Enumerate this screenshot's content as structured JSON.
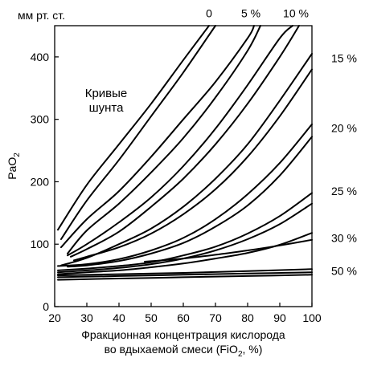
{
  "chart_data": {
    "type": "line",
    "units_label": "мм рт. ст.",
    "ylabel": "PaO",
    "ylabel_sub": "2",
    "xlabel_line1": "Фракционная концентрация кислорода",
    "xlabel_line2_pre": "во вдыхаемой смеси (FiO",
    "xlabel_line2_sub": "2",
    "xlabel_line2_post": ", %)",
    "annotation_line1": "Кривые",
    "annotation_line2": "шунта",
    "xlim": [
      20,
      100
    ],
    "ylim": [
      0,
      450
    ],
    "xticks": [
      20,
      30,
      40,
      50,
      60,
      70,
      80,
      90,
      100
    ],
    "yticks": [
      0,
      100,
      200,
      300,
      400
    ],
    "grid": false,
    "series": [
      {
        "name": "0",
        "x": [
          21,
          30,
          40,
          50,
          60,
          68
        ],
        "y": [
          123,
          195,
          260,
          325,
          395,
          450
        ]
      },
      {
        "name": "0",
        "x": [
          22,
          30,
          40,
          50,
          60,
          70
        ],
        "y": [
          108,
          170,
          235,
          305,
          375,
          450
        ]
      },
      {
        "name": "5 %",
        "x": [
          22,
          30,
          40,
          50,
          60,
          70,
          80,
          82
        ],
        "y": [
          95,
          140,
          185,
          240,
          300,
          360,
          430,
          450
        ]
      },
      {
        "name": "5 %",
        "x": [
          24,
          30,
          40,
          50,
          60,
          70,
          80,
          84
        ],
        "y": [
          85,
          122,
          165,
          215,
          270,
          335,
          410,
          450
        ]
      },
      {
        "name": "10 %",
        "x": [
          24,
          30,
          40,
          50,
          60,
          70,
          80,
          90,
          94
        ],
        "y": [
          82,
          100,
          135,
          175,
          225,
          285,
          355,
          430,
          450
        ]
      },
      {
        "name": "10 %",
        "x": [
          25,
          30,
          40,
          50,
          60,
          70,
          80,
          90,
          96
        ],
        "y": [
          80,
          92,
          120,
          160,
          205,
          260,
          325,
          400,
          450
        ]
      },
      {
        "name": "15 %",
        "x": [
          22,
          30,
          40,
          50,
          60,
          70,
          80,
          90,
          100
        ],
        "y": [
          66,
          78,
          100,
          125,
          160,
          205,
          260,
          330,
          405
        ]
      },
      {
        "name": "15 %",
        "x": [
          26,
          30,
          40,
          50,
          60,
          70,
          80,
          90,
          100
        ],
        "y": [
          74,
          80,
          95,
          117,
          148,
          188,
          240,
          305,
          380
        ]
      },
      {
        "name": "20 %",
        "x": [
          21,
          30,
          40,
          50,
          60,
          70,
          80,
          90,
          100
        ],
        "y": [
          65,
          68,
          76,
          90,
          110,
          140,
          180,
          230,
          292
        ]
      },
      {
        "name": "20 %",
        "x": [
          24,
          30,
          40,
          50,
          60,
          70,
          80,
          90,
          100
        ],
        "y": [
          64,
          66,
          73,
          85,
          102,
          128,
          162,
          210,
          272
        ]
      },
      {
        "name": "25 %",
        "x": [
          21,
          30,
          40,
          50,
          60,
          70,
          80,
          90,
          100
        ],
        "y": [
          58,
          61,
          65,
          71,
          82,
          96,
          117,
          145,
          182
        ]
      },
      {
        "name": "25 %",
        "x": [
          21,
          30,
          40,
          50,
          60,
          70,
          80,
          90,
          100
        ],
        "y": [
          55,
          58,
          62,
          68,
          77,
          90,
          108,
          132,
          165
        ]
      },
      {
        "name": "30 %",
        "x": [
          21,
          30,
          40,
          50,
          60,
          70,
          80,
          90,
          100
        ],
        "y": [
          52,
          55,
          58,
          63,
          69,
          77,
          86,
          99,
          118
        ]
      },
      {
        "name": "30 %",
        "x": [
          48,
          60,
          70,
          80,
          90,
          100
        ],
        "y": [
          72,
          77,
          83,
          90,
          98,
          107
        ]
      },
      {
        "name": "50 %",
        "x": [
          21,
          40,
          60,
          80,
          100
        ],
        "y": [
          50,
          52,
          54,
          57,
          60
        ]
      },
      {
        "name": "50 %",
        "x": [
          21,
          40,
          60,
          80,
          100
        ],
        "y": [
          47,
          49,
          51,
          53,
          55
        ]
      },
      {
        "name": "50 %",
        "x": [
          21,
          40,
          60,
          80,
          100
        ],
        "y": [
          43,
          45,
          47,
          49,
          51
        ]
      }
    ],
    "curve_labels": [
      {
        "text": "0",
        "x": 68,
        "y": 470
      },
      {
        "text": "5 %",
        "x": 81,
        "y": 470
      },
      {
        "text": "10 %",
        "x": 95,
        "y": 470
      },
      {
        "text": "15 %",
        "x": 106,
        "y": 398
      },
      {
        "text": "20 %",
        "x": 106,
        "y": 286
      },
      {
        "text": "25 %",
        "x": 106,
        "y": 185
      },
      {
        "text": "30 %",
        "x": 106,
        "y": 110
      },
      {
        "text": "50 %",
        "x": 106,
        "y": 57
      }
    ]
  }
}
